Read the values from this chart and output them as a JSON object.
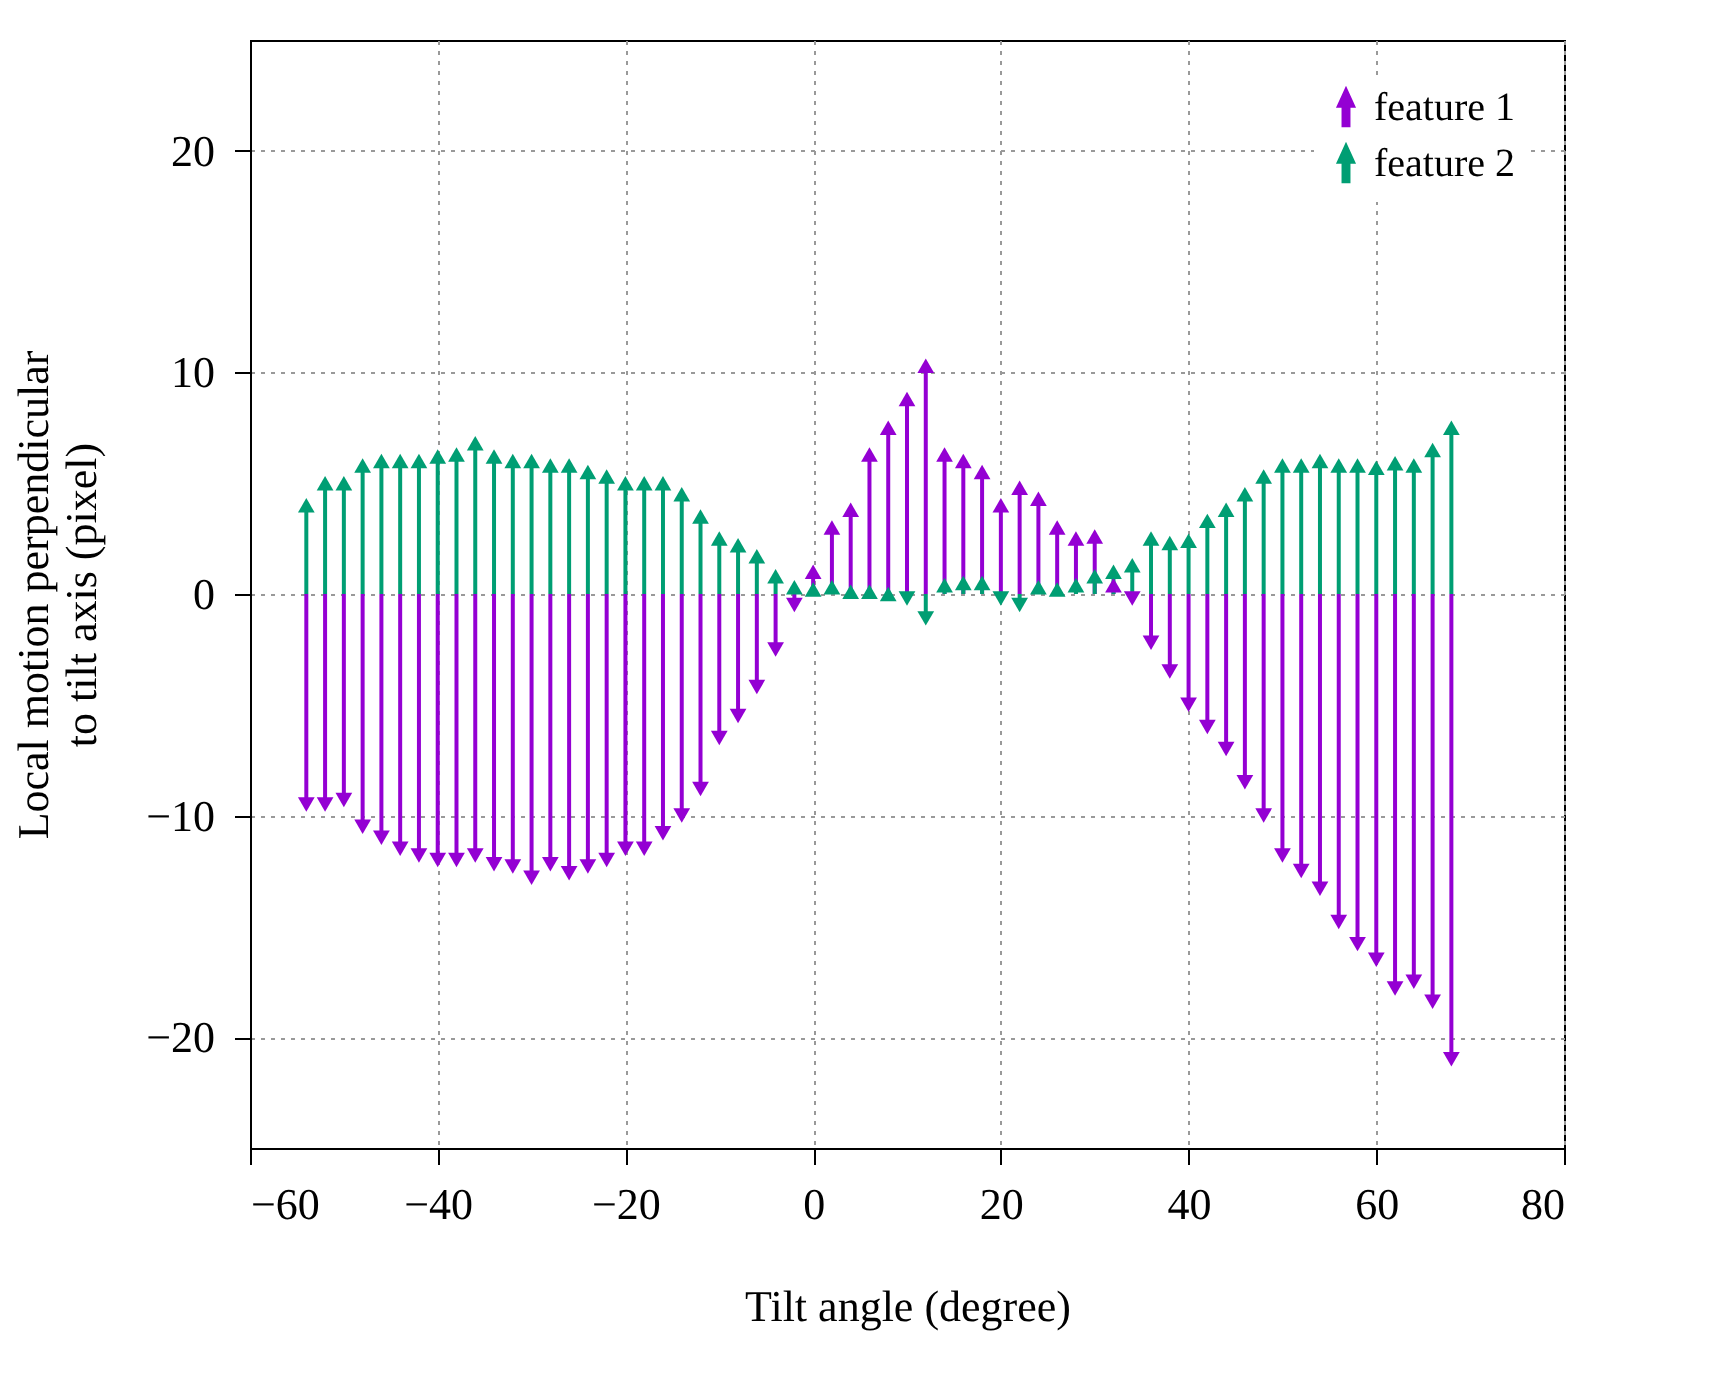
{
  "chart_data": {
    "type": "lollipop",
    "xlabel": "Tilt angle (degree)",
    "ylabel": "Local motion perpendicular\nto tilt axis (pixel)",
    "x": [
      -54,
      -52,
      -50,
      -48,
      -46,
      -44,
      -42,
      -40,
      -38,
      -36,
      -34,
      -32,
      -30,
      -28,
      -26,
      -24,
      -22,
      -20,
      -18,
      -16,
      -14,
      -12,
      -10,
      -8,
      -6,
      -4,
      -2,
      0,
      2,
      4,
      6,
      8,
      10,
      12,
      14,
      16,
      18,
      20,
      22,
      24,
      26,
      28,
      30,
      32,
      34,
      36,
      38,
      40,
      42,
      44,
      46,
      48,
      50,
      52,
      54,
      56,
      58,
      60,
      62,
      64,
      66,
      68
    ],
    "series": [
      {
        "name": "feature 1",
        "color": "#9400d3",
        "values": [
          -9.5,
          -9.5,
          -9.3,
          -10.5,
          -11,
          -11.5,
          -11.8,
          -12,
          -12,
          -11.8,
          -12.2,
          -12.3,
          -12.8,
          -12.2,
          -12.6,
          -12.3,
          -12,
          -11.5,
          -11.5,
          -10.8,
          -10,
          -8.8,
          -6.5,
          -5.5,
          -4.2,
          -2.5,
          -0.5,
          1,
          3,
          3.8,
          6.3,
          7.5,
          8.8,
          10.3,
          6.3,
          6,
          5.5,
          4,
          4.8,
          4.3,
          3,
          2.5,
          2.6,
          0.4,
          -0.2,
          -2.2,
          -3.5,
          -5,
          -6,
          -7,
          -8.5,
          -10,
          -11.8,
          -12.5,
          -13.3,
          -14.8,
          -15.8,
          -16.5,
          -17.8,
          -17.5,
          -18.4,
          -21
        ]
      },
      {
        "name": "feature 2",
        "color": "#009e73",
        "values": [
          4,
          5,
          5,
          5.8,
          6,
          6,
          6,
          6.2,
          6.3,
          6.8,
          6.2,
          6,
          6,
          5.8,
          5.8,
          5.5,
          5.3,
          5,
          5,
          5,
          4.5,
          3.5,
          2.5,
          2.2,
          1.7,
          0.8,
          0.3,
          0.2,
          0.3,
          0.1,
          0.1,
          0,
          -0.2,
          -1.1,
          0.4,
          0.5,
          0.5,
          -0.2,
          -0.5,
          0.3,
          0.2,
          0.4,
          0.8,
          1,
          1.3,
          2.5,
          2.3,
          2.4,
          3.3,
          3.8,
          4.5,
          5.3,
          5.8,
          5.8,
          6,
          5.8,
          5.8,
          5.7,
          5.9,
          5.8,
          6.5,
          7.5
        ]
      }
    ],
    "xlim": [
      -60,
      80
    ],
    "xticks": [
      -60,
      -40,
      -20,
      0,
      20,
      40,
      60,
      80
    ],
    "ylim": [
      -25,
      25
    ],
    "yticks": [
      -20,
      -10,
      0,
      10,
      20
    ],
    "grid": true,
    "legend": "top right",
    "marker": "triangle"
  }
}
